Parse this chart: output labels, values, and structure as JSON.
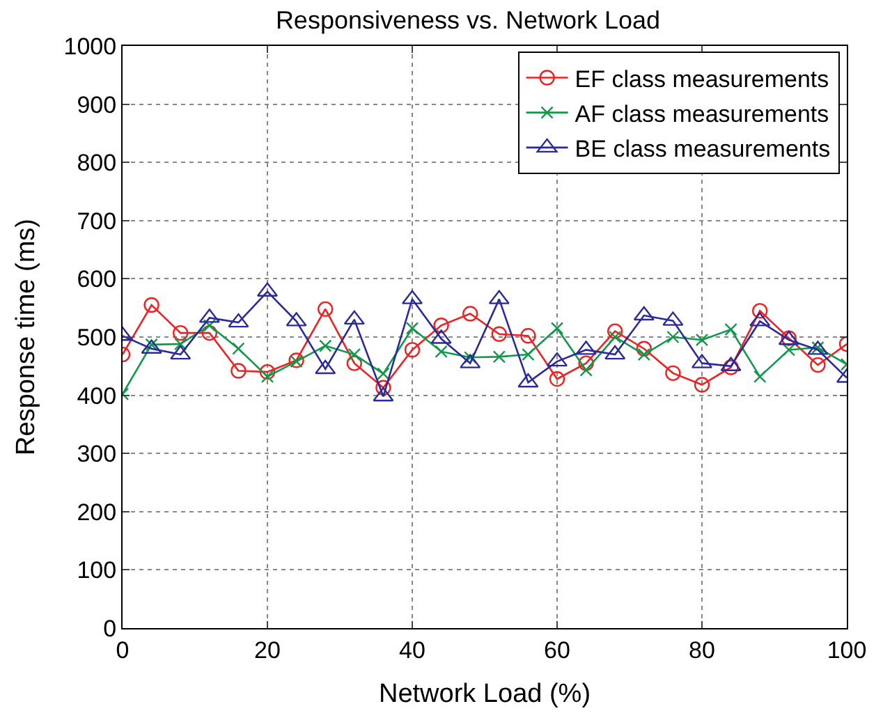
{
  "chart_data": {
    "type": "line",
    "title": "Responsiveness vs. Network Load",
    "xlabel": "Network Load (%)",
    "ylabel": "Response time (ms)",
    "x": [
      0,
      4,
      8,
      12,
      16,
      20,
      24,
      28,
      32,
      36,
      40,
      44,
      48,
      52,
      56,
      60,
      64,
      68,
      72,
      76,
      80,
      84,
      88,
      92,
      96,
      100
    ],
    "xlim": [
      0,
      100
    ],
    "xticks": [
      0,
      20,
      40,
      60,
      80,
      100
    ],
    "ylim": [
      0,
      1000
    ],
    "yticks": [
      0,
      100,
      200,
      300,
      400,
      500,
      600,
      700,
      800,
      900,
      1000
    ],
    "grid": true,
    "legend": "top right",
    "line_style": "solid",
    "series": [
      {
        "name": "EF class measurements",
        "color": "#ee2222",
        "marker": "circle",
        "values": [
          470,
          555,
          507,
          507,
          442,
          440,
          460,
          548,
          455,
          413,
          478,
          520,
          540,
          505,
          502,
          428,
          455,
          510,
          480,
          438,
          418,
          448,
          545,
          498,
          452,
          488
        ]
      },
      {
        "name": "AF class measurements",
        "color": "#11994a",
        "marker": "cross",
        "values": [
          402,
          487,
          488,
          520,
          480,
          432,
          458,
          485,
          470,
          437,
          515,
          475,
          465,
          466,
          470,
          515,
          443,
          500,
          470,
          500,
          495,
          513,
          432,
          478,
          482,
          453
        ]
      },
      {
        "name": "BE class measurements",
        "color": "#2a2a9a",
        "marker": "triangle",
        "values": [
          502,
          480,
          470,
          533,
          525,
          578,
          527,
          445,
          530,
          398,
          565,
          497,
          455,
          565,
          422,
          458,
          478,
          470,
          537,
          528,
          455,
          450,
          527,
          495,
          478,
          430
        ]
      }
    ]
  }
}
